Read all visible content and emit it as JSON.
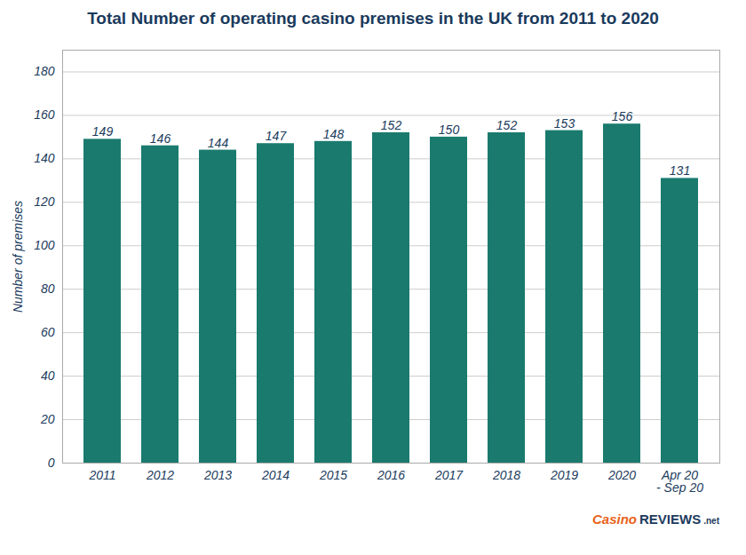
{
  "chart_data": {
    "type": "bar",
    "title": "Total Number of operating casino premises in the UK from 2011 to 2020",
    "ylabel": "Number of premises",
    "categories": [
      "2011",
      "2012",
      "2013",
      "2014",
      "2015",
      "2016",
      "2017",
      "2018",
      "2019",
      "2020",
      "Apr 20\n- Sep 20"
    ],
    "values": [
      149,
      146,
      144,
      147,
      148,
      152,
      150,
      152,
      153,
      156,
      131
    ],
    "color": "#1a7a6e",
    "ylim": [
      0,
      190
    ],
    "yticks": [
      0,
      20,
      40,
      60,
      80,
      100,
      120,
      140,
      160,
      180
    ],
    "grid": true,
    "data_labels": true,
    "annotations": [
      "Casino",
      "REVIEWS",
      ".net"
    ]
  }
}
